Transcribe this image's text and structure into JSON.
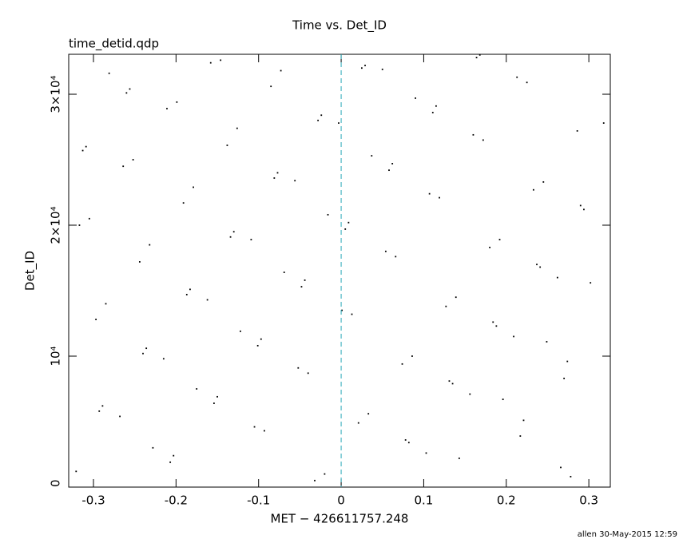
{
  "chart_data": {
    "type": "scatter",
    "title": "Time vs. Det_ID",
    "subtitle": "time_detid.qdp",
    "x_label": "MET − 426611757.248",
    "y_label": "Det_ID",
    "footer": "allen 30-May-2015 12:59",
    "color": "#000000",
    "vline": {
      "x": 0,
      "color": "#2aa9b8"
    },
    "xlim": [
      -0.33,
      0.326
    ],
    "ylim": [
      0,
      33050
    ],
    "xticks": [
      -0.3,
      -0.2,
      -0.1,
      0,
      0.1,
      0.2,
      0.3
    ],
    "yticks": [
      0,
      {
        "value": 10000,
        "label": "10⁴"
      },
      {
        "value": 20000,
        "label": "2×10⁴"
      },
      {
        "value": 30000,
        "label": "3×10⁴"
      }
    ],
    "x": [
      -0.321,
      -0.268,
      -0.215,
      -0.162,
      -0.109,
      -0.056,
      -0.003,
      0.05,
      0.103,
      0.156,
      0.209,
      0.262,
      -0.305,
      -0.252,
      -0.199,
      -0.146,
      -0.093,
      -0.04,
      0.013,
      0.066,
      0.119,
      0.172,
      0.225,
      0.278,
      -0.289,
      -0.236,
      -0.183,
      -0.13,
      -0.077,
      -0.024,
      0.029,
      0.082,
      0.135,
      0.188,
      0.241,
      0.294,
      -0.313,
      -0.26,
      -0.207,
      -0.154,
      -0.101,
      -0.048,
      0.005,
      0.058,
      0.111,
      0.164,
      0.217,
      0.27,
      -0.297,
      -0.244,
      -0.191,
      -0.138,
      -0.085,
      -0.032,
      0.021,
      0.074,
      0.127,
      0.18,
      0.233,
      0.286,
      -0.281,
      -0.228,
      -0.175,
      -0.122,
      -0.069,
      -0.016,
      0.037,
      0.09,
      0.143,
      0.196,
      0.249,
      0.302,
      -0.317,
      -0.264,
      -0.211,
      -0.158,
      -0.105,
      -0.052,
      0.001,
      0.054,
      0.107,
      0.16,
      0.213,
      0.266,
      -0.293,
      -0.24,
      -0.187,
      -0.134,
      -0.081,
      -0.028,
      0.025,
      0.078,
      0.131,
      0.184,
      0.237,
      0.29,
      -0.309,
      -0.256,
      -0.203,
      -0.15,
      -0.097,
      -0.044,
      0.009,
      0.062,
      0.115,
      0.168,
      0.221,
      0.274,
      -0.285,
      -0.232,
      -0.179,
      -0.126,
      -0.073,
      -0.02,
      0.033,
      0.086,
      0.139,
      0.192,
      0.245,
      0.318
    ],
    "values": [
      1200,
      5400,
      9800,
      14300,
      18900,
      23400,
      27800,
      31900,
      2600,
      7100,
      11500,
      16000,
      20500,
      25000,
      29400,
      32600,
      4300,
      8700,
      13200,
      17600,
      22100,
      26500,
      30900,
      800,
      6200,
      10600,
      15100,
      19500,
      24000,
      28400,
      32200,
      3400,
      7900,
      12300,
      16800,
      21200,
      25700,
      30100,
      1900,
      6400,
      10800,
      15300,
      19700,
      24200,
      28600,
      32800,
      3900,
      8300,
      12800,
      17200,
      21700,
      26100,
      30600,
      500,
      4900,
      9400,
      13800,
      18300,
      22700,
      27200,
      31600,
      3000,
      7500,
      11900,
      16400,
      20800,
      25300,
      29700,
      2200,
      6700,
      11100,
      15600,
      20000,
      24500,
      28900,
      32400,
      4600,
      9100,
      13500,
      18000,
      22400,
      26900,
      31300,
      1500,
      5800,
      10200,
      14700,
      19100,
      23600,
      28000,
      32000,
      3600,
      8100,
      12600,
      17000,
      21500,
      26000,
      30400,
      2400,
      6900,
      11300,
      15800,
      20200,
      24700,
      29100,
      33000,
      5100,
      9600,
      14000,
      18500,
      22900,
      27400,
      31800,
      1000,
      5600,
      10000,
      14500,
      18900,
      23300,
      27800
    ]
  }
}
